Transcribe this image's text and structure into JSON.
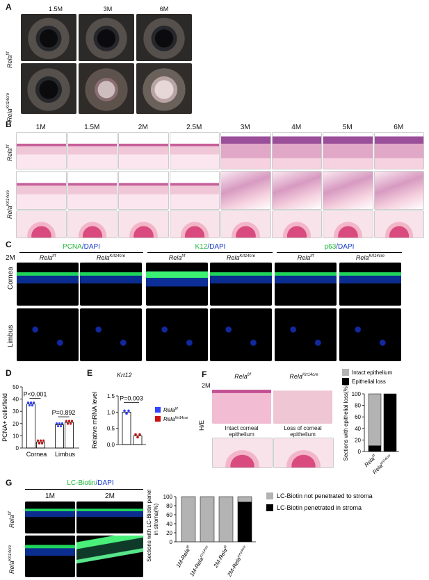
{
  "panel_A": {
    "letter": "A",
    "timepoints": [
      "1.5M",
      "3M",
      "6M"
    ],
    "rows": [
      {
        "label": "Rela",
        "sup": "f/f"
      },
      {
        "label": "Rela",
        "sup": "Krt14cre"
      }
    ]
  },
  "panel_B": {
    "letter": "B",
    "timepoints": [
      "1M",
      "1.5M",
      "2M",
      "2.5M",
      "3M",
      "4M",
      "5M",
      "6M"
    ],
    "rows": [
      {
        "label": "Rela",
        "sup": "f/f"
      },
      {
        "label": "Rela",
        "sup": "Krt14cre"
      }
    ]
  },
  "panel_C": {
    "letter": "C",
    "age": "2M",
    "stains": [
      {
        "marker": "PCNA",
        "dapi": "/DAPI",
        "color": "#1fb73a"
      },
      {
        "marker": "K12",
        "dapi": "/DAPI",
        "color": "#1fb73a"
      },
      {
        "marker": "p63",
        "dapi": "/DAPI",
        "color": "#1fb73a"
      }
    ],
    "genotypes": [
      {
        "label": "Rela",
        "sup": "f/f"
      },
      {
        "label": "Rela",
        "sup": "Krt14cre"
      }
    ],
    "rows": [
      "Cornea",
      "Limbus"
    ]
  },
  "panel_D": {
    "letter": "D",
    "chart_data": {
      "type": "bar",
      "ylabel": "PCNA+ cells/field",
      "categories": [
        "Cornea",
        "Limbus"
      ],
      "ylim": [
        0,
        50
      ],
      "yticks": [
        0,
        10,
        20,
        30,
        40,
        50
      ],
      "series": [
        {
          "name": "Rela f/f",
          "values": [
            36,
            19
          ],
          "color": "#3344ff"
        },
        {
          "name": "Rela Krt14cre",
          "values": [
            5,
            21
          ],
          "color": "#cc1111"
        }
      ],
      "annotations": [
        "P<0.001",
        "P=0.892"
      ]
    }
  },
  "panel_E": {
    "letter": "E",
    "title": "Krt12",
    "chart_data": {
      "type": "bar",
      "ylabel": "Relative mRNA level",
      "ylim": [
        0,
        1.5
      ],
      "yticks": [
        0.0,
        0.5,
        1.0,
        1.5
      ],
      "series": [
        {
          "name": "Rela f/f",
          "values": [
            1.0
          ],
          "color": "#3344ff"
        },
        {
          "name": "Rela Krt14cre",
          "values": [
            0.27
          ],
          "color": "#cc1111"
        }
      ],
      "annotations": [
        "P=0.003"
      ]
    },
    "legend": [
      {
        "label": "Rela",
        "sup": "f/f",
        "color": "#3344ff"
      },
      {
        "label": "Rela",
        "sup": "Krt14cre",
        "color": "#cc1111"
      }
    ]
  },
  "panel_F": {
    "letter": "F",
    "age": "2M",
    "row_label": "H/E",
    "genotypes": [
      {
        "label": "Rela",
        "sup": "f/f"
      },
      {
        "label": "Rela",
        "sup": "Krt14cre"
      }
    ],
    "captions": [
      "Intact corneal epithelium",
      "Loss of corneal epithelium"
    ],
    "chart_data": {
      "type": "bar",
      "ylabel": "Sections with epithelial loss(%)",
      "ylim": [
        0,
        100
      ],
      "yticks": [
        0,
        20,
        40,
        60,
        80,
        100
      ],
      "categories": [
        "Rela f/f",
        "Rela Krt14cre"
      ],
      "series": [
        {
          "name": "Intact epithelium",
          "values": [
            90,
            0
          ],
          "color": "#b3b3b3"
        },
        {
          "name": "Epithelial loss",
          "values": [
            10,
            100
          ],
          "color": "#000000"
        }
      ]
    }
  },
  "panel_G": {
    "letter": "G",
    "stain": {
      "marker": "LC-Biotin",
      "dapi": "/DAPI"
    },
    "timepoints": [
      "1M",
      "2M"
    ],
    "rows": [
      {
        "label": "Rela",
        "sup": "f/f"
      },
      {
        "label": "Rela",
        "sup": "Krt14cre"
      }
    ],
    "chart_data": {
      "type": "bar",
      "ylabel": "Sections with LC-Biotin penetrated in stroma(%)",
      "ylim": [
        0,
        100
      ],
      "yticks": [
        0,
        20,
        40,
        60,
        80,
        100
      ],
      "categories": [
        "1M-Rela f/f",
        "1M-Rela Krt14cre",
        "2M-Rela f/f",
        "2M-Rela Krt14cre"
      ],
      "series": [
        {
          "name": "LC-Biotin not penetrated to stroma",
          "values": [
            100,
            100,
            100,
            12
          ],
          "color": "#b3b3b3"
        },
        {
          "name": "LC-Biotin penetrated in stroma",
          "values": [
            0,
            0,
            0,
            88
          ],
          "color": "#000000"
        }
      ]
    }
  }
}
